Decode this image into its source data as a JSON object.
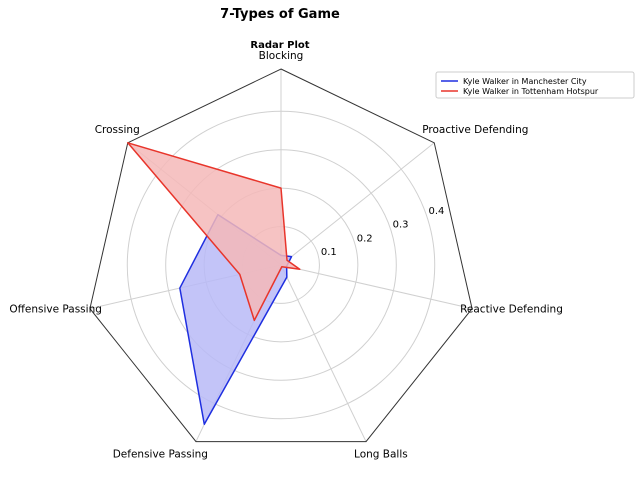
{
  "chart_data": {
    "type": "radar",
    "title": "7-Types of Game",
    "subtitle": "Radar Plot",
    "axes": [
      "Blocking",
      "Proactive Defending",
      "Reactive Defending",
      "Long Balls",
      "Defensive Passing",
      "Offensive Passing",
      "Crossing"
    ],
    "series": [
      {
        "name": "Kyle Walker in Manchester City",
        "color": "#1f2fe0",
        "fill": "#b8baf7",
        "values": [
          0.025,
          0.035,
          0.015,
          0.035,
          0.46,
          0.27,
          0.21
        ]
      },
      {
        "name": "Kyle Walker in Tottenham Hotspur",
        "color": "#e8352b",
        "fill": "#f4b8b8",
        "values": [
          0.2,
          0.02,
          0.05,
          0.005,
          0.16,
          0.11,
          0.51
        ]
      }
    ],
    "rlim": [
      0,
      0.51
    ],
    "radial_ticks": [
      0.1,
      0.2,
      0.3,
      0.4
    ],
    "radial_tick_labels": [
      "0.1",
      "0.2",
      "0.3",
      "0.4"
    ],
    "grid": true,
    "legend_position": "top-right"
  }
}
